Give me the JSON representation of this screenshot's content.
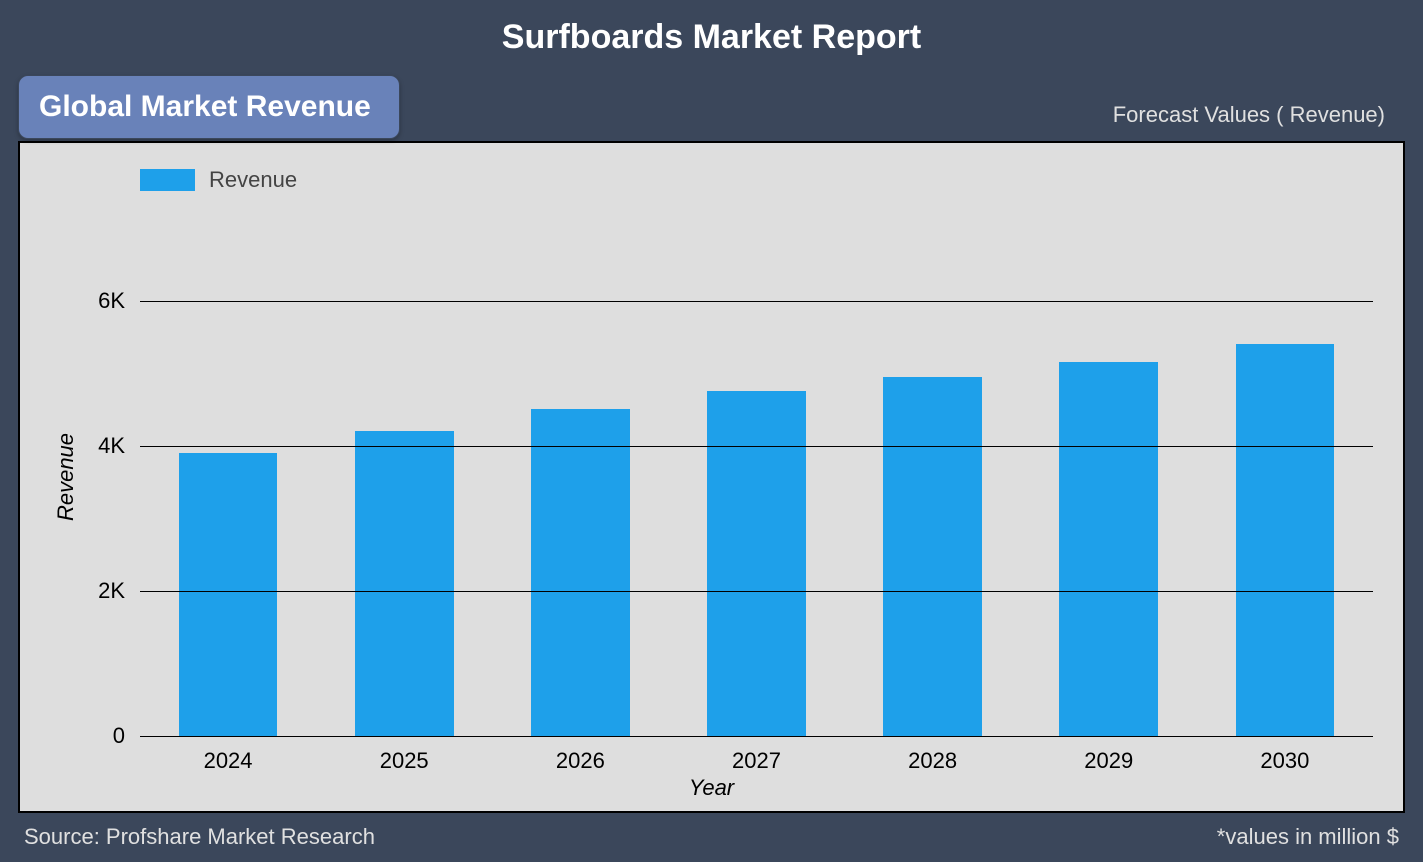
{
  "title": "Surfboards Market Report",
  "badge": "Global Market Revenue",
  "forecast_label": "Forecast Values ( Revenue)",
  "footer": {
    "source": "Source: Profshare Market Research",
    "note": "*values in million $"
  },
  "chart": {
    "type": "bar",
    "legend_label": "Revenue",
    "xlabel": "Year",
    "ylabel": "Revenue",
    "categories": [
      "2024",
      "2025",
      "2026",
      "2027",
      "2028",
      "2029",
      "2030"
    ],
    "values": [
      3900,
      4200,
      4500,
      4750,
      4950,
      5150,
      5400
    ],
    "bar_color": "#1ea0ea",
    "background_color": "#dedede",
    "grid_color": "#000000",
    "text_color": "#000000",
    "axis_label_fontsize": 22,
    "tick_fontsize": 22,
    "ylim": [
      0,
      7000
    ],
    "yticks": [
      {
        "value": 0,
        "label": "0"
      },
      {
        "value": 2000,
        "label": "2K"
      },
      {
        "value": 4000,
        "label": "4K"
      },
      {
        "value": 6000,
        "label": "6K"
      }
    ],
    "bar_width_ratio": 0.56,
    "page_background": "#3b475b",
    "badge_background": "#6982b9"
  }
}
